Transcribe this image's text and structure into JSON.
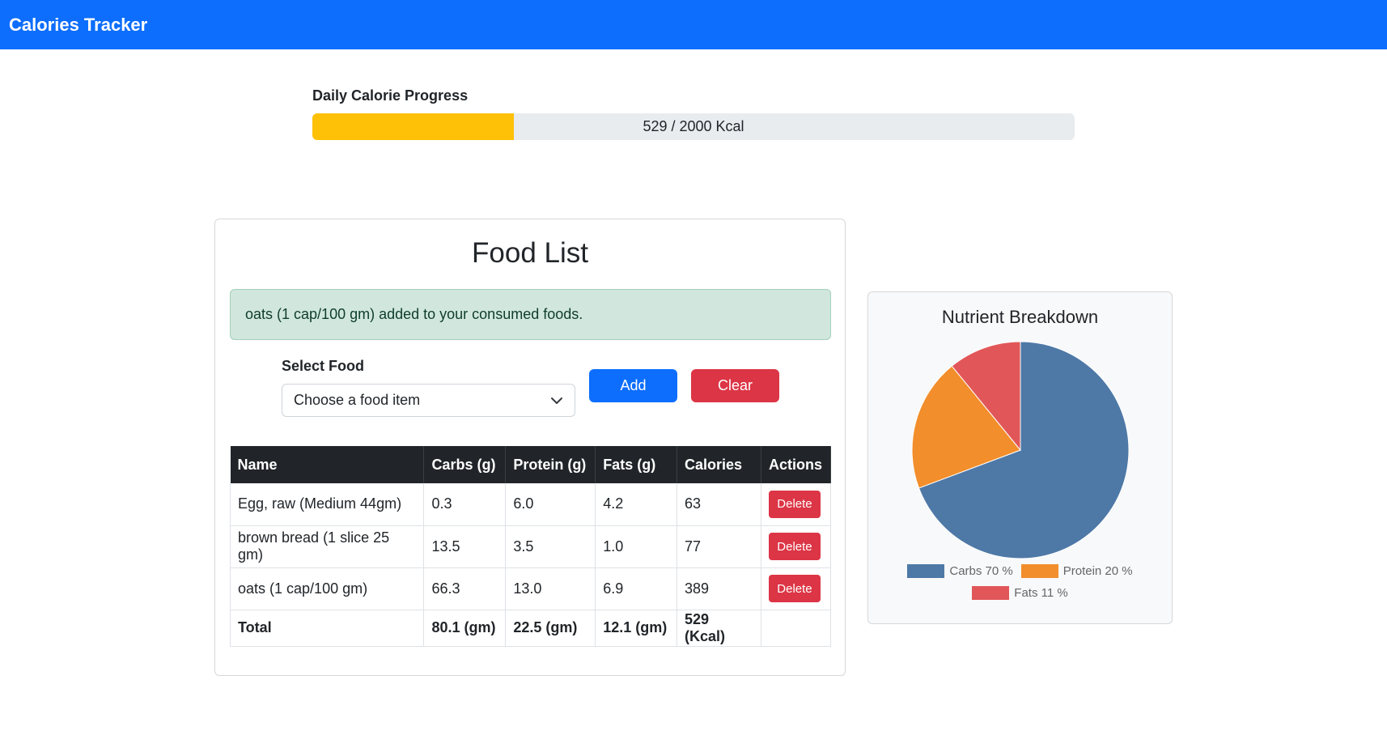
{
  "navbar": {
    "brand": "Calories Tracker"
  },
  "progress": {
    "label": "Daily Calorie Progress",
    "consumed": 529,
    "goal": 2000,
    "fraction": 0.2645,
    "text": "529 / 2000 Kcal",
    "fill_color": "#ffc107"
  },
  "food_list": {
    "title": "Food List",
    "alert": "oats (1 cap/100 gm) added to your consumed foods.",
    "select_label": "Select Food",
    "select_value": "Choose a food item",
    "add_label": "Add",
    "clear_label": "Clear",
    "headers": [
      "Name",
      "Carbs (g)",
      "Protein (g)",
      "Fats (g)",
      "Calories",
      "Actions"
    ],
    "rows": [
      {
        "name": "Egg, raw (Medium 44gm)",
        "carbs": "0.3",
        "protein": "6.0",
        "fats": "4.2",
        "calories": "63",
        "action": "Delete"
      },
      {
        "name": "brown bread (1 slice 25 gm)",
        "carbs": "13.5",
        "protein": "3.5",
        "fats": "1.0",
        "calories": "77",
        "action": "Delete"
      },
      {
        "name": "oats (1 cap/100 gm)",
        "carbs": "66.3",
        "protein": "13.0",
        "fats": "6.9",
        "calories": "389",
        "action": "Delete"
      }
    ],
    "total": {
      "label": "Total",
      "carbs": "80.1 (gm)",
      "protein": "22.5 (gm)",
      "fats": "12.1 (gm)",
      "calories": "529 (Kcal)"
    }
  },
  "nutrient": {
    "title": "Nutrient Breakdown",
    "legend": [
      {
        "label": "Carbs 70 %",
        "color": "#4e79a7"
      },
      {
        "label": "Protein 20 %",
        "color": "#f28e2b"
      },
      {
        "label": "Fats 11 %",
        "color": "#e15759"
      }
    ]
  },
  "chart_data": {
    "type": "pie",
    "title": "Nutrient Breakdown",
    "categories": [
      "Carbs",
      "Protein",
      "Fats"
    ],
    "values": [
      70,
      20,
      11
    ],
    "colors": [
      "#4e79a7",
      "#f28e2b",
      "#e15759"
    ],
    "legend": "bottom"
  }
}
